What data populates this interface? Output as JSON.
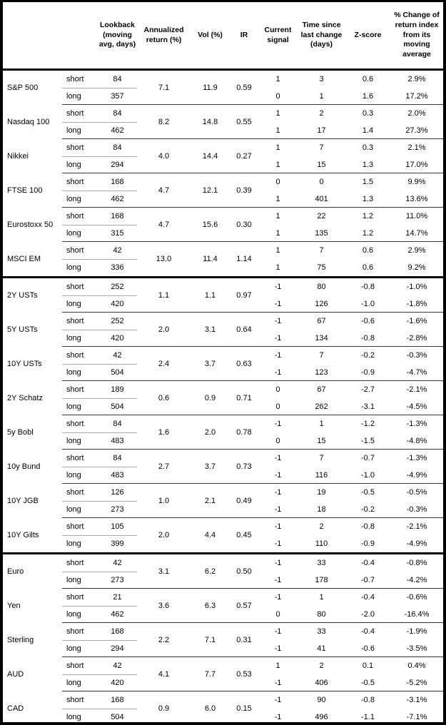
{
  "header": {
    "columns": {
      "asset": "",
      "horizon": "",
      "lookback": "Lookback (moving avg, days)",
      "annualized_return": "Annualized return (%)",
      "vol": "Vol (%)",
      "ir": "IR",
      "current_signal": "Current signal",
      "time_since": "Time since last change (days)",
      "zscore": "Z-score",
      "pct_change": "% Change of return index from its moving average"
    }
  },
  "table": {
    "sections": [
      {
        "groups": [
          {
            "asset": "S&P 500",
            "ann_return": "7.1",
            "vol": "11.9",
            "ir": "0.59",
            "rows": [
              {
                "horizon": "short",
                "lookback": "84",
                "signal": "1",
                "time": "3",
                "z": "0.6",
                "pct": "2.9%"
              },
              {
                "horizon": "long",
                "lookback": "357",
                "signal": "0",
                "time": "1",
                "z": "1.6",
                "pct": "17.2%"
              }
            ]
          },
          {
            "asset": "Nasdaq 100",
            "ann_return": "8.2",
            "vol": "14.8",
            "ir": "0.55",
            "rows": [
              {
                "horizon": "short",
                "lookback": "84",
                "signal": "1",
                "time": "2",
                "z": "0.3",
                "pct": "2.0%"
              },
              {
                "horizon": "long",
                "lookback": "462",
                "signal": "1",
                "time": "17",
                "z": "1.4",
                "pct": "27.3%"
              }
            ]
          },
          {
            "asset": "Nikkei",
            "ann_return": "4.0",
            "vol": "14.4",
            "ir": "0.27",
            "rows": [
              {
                "horizon": "short",
                "lookback": "84",
                "signal": "1",
                "time": "7",
                "z": "0.3",
                "pct": "2.1%"
              },
              {
                "horizon": "long",
                "lookback": "294",
                "signal": "1",
                "time": "15",
                "z": "1.3",
                "pct": "17.0%"
              }
            ]
          },
          {
            "asset": "FTSE 100",
            "ann_return": "4.7",
            "vol": "12.1",
            "ir": "0.39",
            "rows": [
              {
                "horizon": "short",
                "lookback": "168",
                "signal": "0",
                "time": "0",
                "z": "1.5",
                "pct": "9.9%"
              },
              {
                "horizon": "long",
                "lookback": "462",
                "signal": "1",
                "time": "401",
                "z": "1.3",
                "pct": "13.6%"
              }
            ]
          },
          {
            "asset": "Eurostoxx 50",
            "ann_return": "4.7",
            "vol": "15.6",
            "ir": "0.30",
            "rows": [
              {
                "horizon": "short",
                "lookback": "168",
                "signal": "1",
                "time": "22",
                "z": "1.2",
                "pct": "11.0%"
              },
              {
                "horizon": "long",
                "lookback": "315",
                "signal": "1",
                "time": "135",
                "z": "1.2",
                "pct": "14.7%"
              }
            ]
          },
          {
            "asset": "MSCI EM",
            "ann_return": "13.0",
            "vol": "11.4",
            "ir": "1.14",
            "rows": [
              {
                "horizon": "short",
                "lookback": "42",
                "signal": "1",
                "time": "7",
                "z": "0.6",
                "pct": "2.9%"
              },
              {
                "horizon": "long",
                "lookback": "336",
                "signal": "1",
                "time": "75",
                "z": "0.6",
                "pct": "9.2%"
              }
            ]
          }
        ]
      },
      {
        "groups": [
          {
            "asset": "2Y USTs",
            "ann_return": "1.1",
            "vol": "1.1",
            "ir": "0.97",
            "rows": [
              {
                "horizon": "short",
                "lookback": "252",
                "signal": "-1",
                "time": "80",
                "z": "-0.8",
                "pct": "-1.0%"
              },
              {
                "horizon": "long",
                "lookback": "420",
                "signal": "-1",
                "time": "126",
                "z": "-1.0",
                "pct": "-1.8%"
              }
            ]
          },
          {
            "asset": "5Y USTs",
            "ann_return": "2.0",
            "vol": "3.1",
            "ir": "0.64",
            "rows": [
              {
                "horizon": "short",
                "lookback": "252",
                "signal": "-1",
                "time": "67",
                "z": "-0.6",
                "pct": "-1.6%"
              },
              {
                "horizon": "long",
                "lookback": "420",
                "signal": "-1",
                "time": "134",
                "z": "-0.8",
                "pct": "-2.8%"
              }
            ]
          },
          {
            "asset": "10Y USTs",
            "ann_return": "2.4",
            "vol": "3.7",
            "ir": "0.63",
            "rows": [
              {
                "horizon": "short",
                "lookback": "42",
                "signal": "-1",
                "time": "7",
                "z": "-0.2",
                "pct": "-0.3%"
              },
              {
                "horizon": "long",
                "lookback": "504",
                "signal": "-1",
                "time": "123",
                "z": "-0.9",
                "pct": "-4.7%"
              }
            ]
          },
          {
            "asset": "2Y Schatz",
            "ann_return": "0.6",
            "vol": "0.9",
            "ir": "0.71",
            "rows": [
              {
                "horizon": "short",
                "lookback": "189",
                "signal": "0",
                "time": "67",
                "z": "-2.7",
                "pct": "-2.1%"
              },
              {
                "horizon": "long",
                "lookback": "504",
                "signal": "0",
                "time": "262",
                "z": "-3.1",
                "pct": "-4.5%"
              }
            ]
          },
          {
            "asset": "5y Bobl",
            "ann_return": "1.6",
            "vol": "2.0",
            "ir": "0.78",
            "rows": [
              {
                "horizon": "short",
                "lookback": "84",
                "signal": "-1",
                "time": "1",
                "z": "-1.2",
                "pct": "-1.3%"
              },
              {
                "horizon": "long",
                "lookback": "483",
                "signal": "0",
                "time": "15",
                "z": "-1.5",
                "pct": "-4.8%"
              }
            ]
          },
          {
            "asset": "10y Bund",
            "ann_return": "2.7",
            "vol": "3.7",
            "ir": "0.73",
            "rows": [
              {
                "horizon": "short",
                "lookback": "84",
                "signal": "-1",
                "time": "7",
                "z": "-0.7",
                "pct": "-1.3%"
              },
              {
                "horizon": "long",
                "lookback": "483",
                "signal": "-1",
                "time": "116",
                "z": "-1.0",
                "pct": "-4.9%"
              }
            ]
          },
          {
            "asset": "10Y JGB",
            "ann_return": "1.0",
            "vol": "2.1",
            "ir": "0.49",
            "rows": [
              {
                "horizon": "short",
                "lookback": "126",
                "signal": "-1",
                "time": "19",
                "z": "-0.5",
                "pct": "-0.5%"
              },
              {
                "horizon": "long",
                "lookback": "273",
                "signal": "-1",
                "time": "18",
                "z": "-0.2",
                "pct": "-0.3%"
              }
            ]
          },
          {
            "asset": "10Y Gilts",
            "ann_return": "2.0",
            "vol": "4.4",
            "ir": "0.45",
            "rows": [
              {
                "horizon": "short",
                "lookback": "105",
                "signal": "-1",
                "time": "2",
                "z": "-0.8",
                "pct": "-2.1%"
              },
              {
                "horizon": "long",
                "lookback": "399",
                "signal": "-1",
                "time": "110",
                "z": "-0.9",
                "pct": "-4.9%"
              }
            ]
          }
        ]
      },
      {
        "groups": [
          {
            "asset": "Euro",
            "ann_return": "3.1",
            "vol": "6.2",
            "ir": "0.50",
            "rows": [
              {
                "horizon": "short",
                "lookback": "42",
                "signal": "-1",
                "time": "33",
                "z": "-0.4",
                "pct": "-0.8%"
              },
              {
                "horizon": "long",
                "lookback": "273",
                "signal": "-1",
                "time": "178",
                "z": "-0.7",
                "pct": "-4.2%"
              }
            ]
          },
          {
            "asset": "Yen",
            "ann_return": "3.6",
            "vol": "6.3",
            "ir": "0.57",
            "rows": [
              {
                "horizon": "short",
                "lookback": "21",
                "signal": "-1",
                "time": "1",
                "z": "-0.4",
                "pct": "-0.6%"
              },
              {
                "horizon": "long",
                "lookback": "462",
                "signal": "0",
                "time": "80",
                "z": "-2.0",
                "pct": "-16.4%"
              }
            ]
          },
          {
            "asset": "Sterling",
            "ann_return": "2.2",
            "vol": "7.1",
            "ir": "0.31",
            "rows": [
              {
                "horizon": "short",
                "lookback": "168",
                "signal": "-1",
                "time": "33",
                "z": "-0.4",
                "pct": "-1.9%"
              },
              {
                "horizon": "long",
                "lookback": "294",
                "signal": "-1",
                "time": "41",
                "z": "-0.6",
                "pct": "-3.5%"
              }
            ]
          },
          {
            "asset": "AUD",
            "ann_return": "4.1",
            "vol": "7.7",
            "ir": "0.53",
            "rows": [
              {
                "horizon": "short",
                "lookback": "42",
                "signal": "1",
                "time": "2",
                "z": "0.1",
                "pct": "0.4%"
              },
              {
                "horizon": "long",
                "lookback": "420",
                "signal": "-1",
                "time": "406",
                "z": "-0.5",
                "pct": "-5.2%"
              }
            ]
          },
          {
            "asset": "CAD",
            "ann_return": "0.9",
            "vol": "6.0",
            "ir": "0.15",
            "rows": [
              {
                "horizon": "short",
                "lookback": "168",
                "signal": "-1",
                "time": "90",
                "z": "-0.8",
                "pct": "-3.1%"
              },
              {
                "horizon": "long",
                "lookback": "504",
                "signal": "-1",
                "time": "496",
                "z": "-1.1",
                "pct": "-7.1%"
              }
            ]
          }
        ]
      }
    ]
  }
}
